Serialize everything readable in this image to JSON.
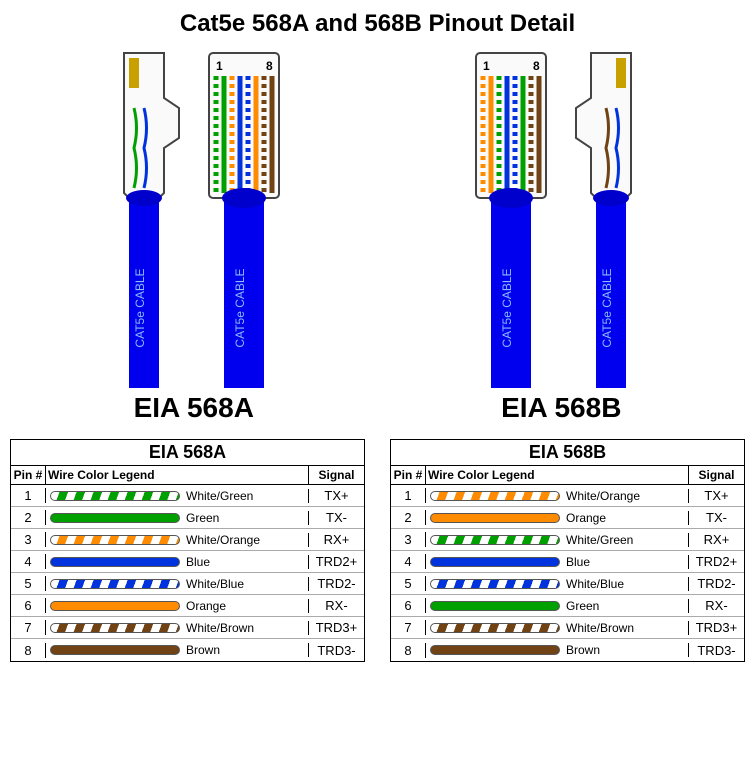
{
  "title": "Cat5e 568A and 568B Pinout Detail",
  "cable_label": "CAT5e CABLE",
  "pin_label_1": "1",
  "pin_label_8": "8",
  "colors": {
    "green": "#00a000",
    "orange": "#ff8c00",
    "blue": "#0033dd",
    "brown": "#704214",
    "white": "#ffffff",
    "cable_blue": "#0000ee",
    "gold_contact": "#c8a000",
    "connector_outline": "#444444"
  },
  "standards": [
    {
      "label": "EIA 568A",
      "wire_order": [
        "white-green",
        "green",
        "white-orange",
        "blue",
        "white-blue",
        "orange",
        "white-brown",
        "brown"
      ],
      "pins": [
        {
          "num": "1",
          "color_label": "White/Green",
          "swatch": {
            "type": "striped",
            "c1": "#ffffff",
            "c2": "#00a000"
          },
          "signal": "TX+"
        },
        {
          "num": "2",
          "color_label": "Green",
          "swatch": {
            "type": "solid",
            "c1": "#00a000"
          },
          "signal": "TX-"
        },
        {
          "num": "3",
          "color_label": "White/Orange",
          "swatch": {
            "type": "striped",
            "c1": "#ffffff",
            "c2": "#ff8c00"
          },
          "signal": "RX+"
        },
        {
          "num": "4",
          "color_label": "Blue",
          "swatch": {
            "type": "solid",
            "c1": "#0033dd"
          },
          "signal": "TRD2+"
        },
        {
          "num": "5",
          "color_label": "White/Blue",
          "swatch": {
            "type": "striped",
            "c1": "#ffffff",
            "c2": "#0033dd"
          },
          "signal": "TRD2-"
        },
        {
          "num": "6",
          "color_label": "Orange",
          "swatch": {
            "type": "solid",
            "c1": "#ff8c00"
          },
          "signal": "RX-"
        },
        {
          "num": "7",
          "color_label": "White/Brown",
          "swatch": {
            "type": "striped",
            "c1": "#ffffff",
            "c2": "#704214"
          },
          "signal": "TRD3+"
        },
        {
          "num": "8",
          "color_label": "Brown",
          "swatch": {
            "type": "solid",
            "c1": "#704214"
          },
          "signal": "TRD3-"
        }
      ]
    },
    {
      "label": "EIA 568B",
      "wire_order": [
        "white-orange",
        "orange",
        "white-green",
        "blue",
        "white-blue",
        "green",
        "white-brown",
        "brown"
      ],
      "pins": [
        {
          "num": "1",
          "color_label": "White/Orange",
          "swatch": {
            "type": "striped",
            "c1": "#ffffff",
            "c2": "#ff8c00"
          },
          "signal": "TX+"
        },
        {
          "num": "2",
          "color_label": "Orange",
          "swatch": {
            "type": "solid",
            "c1": "#ff8c00"
          },
          "signal": "TX-"
        },
        {
          "num": "3",
          "color_label": "White/Green",
          "swatch": {
            "type": "striped",
            "c1": "#ffffff",
            "c2": "#00a000"
          },
          "signal": "RX+"
        },
        {
          "num": "4",
          "color_label": "Blue",
          "swatch": {
            "type": "solid",
            "c1": "#0033dd"
          },
          "signal": "TRD2+"
        },
        {
          "num": "5",
          "color_label": "White/Blue",
          "swatch": {
            "type": "striped",
            "c1": "#ffffff",
            "c2": "#0033dd"
          },
          "signal": "TRD2-"
        },
        {
          "num": "6",
          "color_label": "Green",
          "swatch": {
            "type": "solid",
            "c1": "#00a000"
          },
          "signal": "RX-"
        },
        {
          "num": "7",
          "color_label": "White/Brown",
          "swatch": {
            "type": "striped",
            "c1": "#ffffff",
            "c2": "#704214"
          },
          "signal": "TRD3+"
        },
        {
          "num": "8",
          "color_label": "Brown",
          "swatch": {
            "type": "solid",
            "c1": "#704214"
          },
          "signal": "TRD3-"
        }
      ]
    }
  ],
  "table_headers": {
    "pin": "Pin #",
    "color": "Wire Color Legend",
    "signal": "Signal"
  }
}
